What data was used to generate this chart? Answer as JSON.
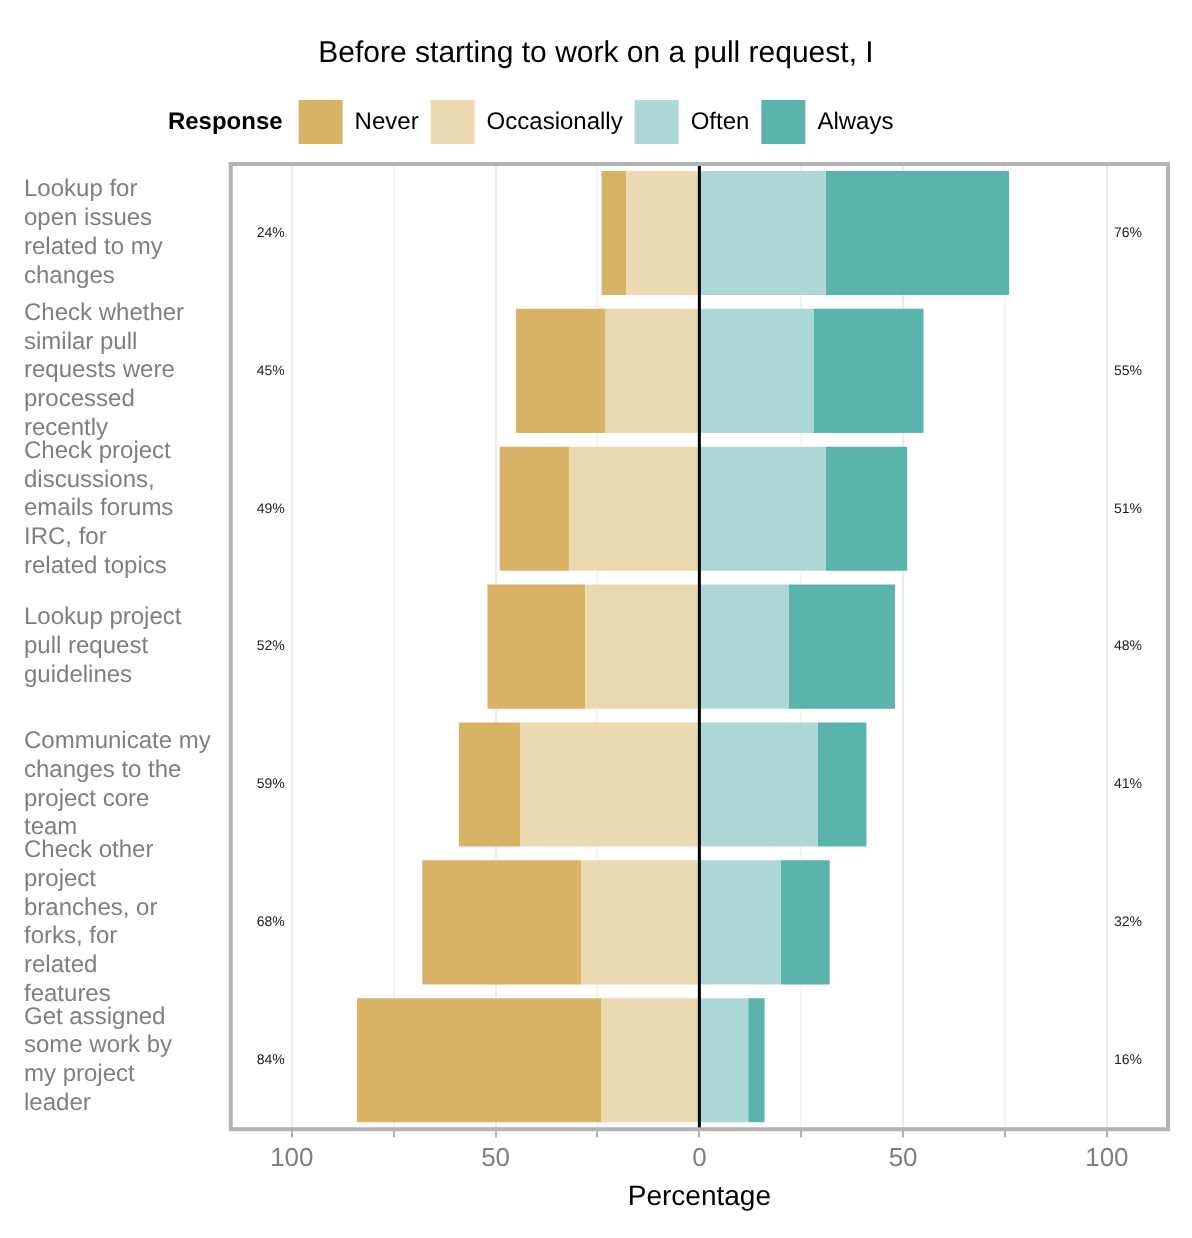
{
  "chart_data": {
    "type": "bar",
    "orientation": "horizontal",
    "stacked": true,
    "title": "Before starting to work on a pull request, I",
    "xlabel": "Percentage",
    "legend_title": "Response",
    "legend": "top",
    "categories": [
      "Lookup for open issues related to my changes",
      "Check whether similar pull requests were processed recently",
      "Check project discussions, emails forums IRC, for related topics",
      "Lookup project pull request guidelines",
      "Communicate my changes to the project core team",
      "Check other project branches, or forks, for related features",
      "Get assigned some work by my project leader"
    ],
    "series": [
      {
        "name": "Occasionally",
        "color": "#ead9b1",
        "values": [
          -18,
          -23,
          -32,
          -28,
          -44,
          -29,
          -24
        ]
      },
      {
        "name": "Never",
        "color": "#d8b365",
        "values": [
          -6,
          -22,
          -17,
          -24,
          -15,
          -39,
          -60
        ]
      },
      {
        "name": "Often",
        "color": "#aed8d5",
        "values": [
          31,
          28,
          31,
          22,
          29,
          20,
          12
        ]
      },
      {
        "name": "Always",
        "color": "#5ab4ac",
        "values": [
          45,
          27,
          20,
          26,
          12,
          12,
          4
        ]
      }
    ],
    "xlim": [
      -115,
      115
    ],
    "xticks": [
      {
        "value": -100,
        "label": "100"
      },
      {
        "value": -75,
        "label": null
      },
      {
        "value": -50,
        "label": "50"
      },
      {
        "value": -25,
        "label": null
      },
      0,
      {
        "value": 25,
        "label": null
      },
      50,
      {
        "value": 75,
        "label": null
      },
      100
    ],
    "grid": "x",
    "ref_lines": [
      {
        "axis": "x",
        "value": 0,
        "color": "#000000"
      }
    ],
    "annotations": [
      "24%",
      "76%",
      "45%",
      "55%",
      "49%",
      "51%",
      "52%",
      "48%",
      "59%",
      "41%",
      "68%",
      "32%",
      "84%",
      "16%"
    ]
  }
}
